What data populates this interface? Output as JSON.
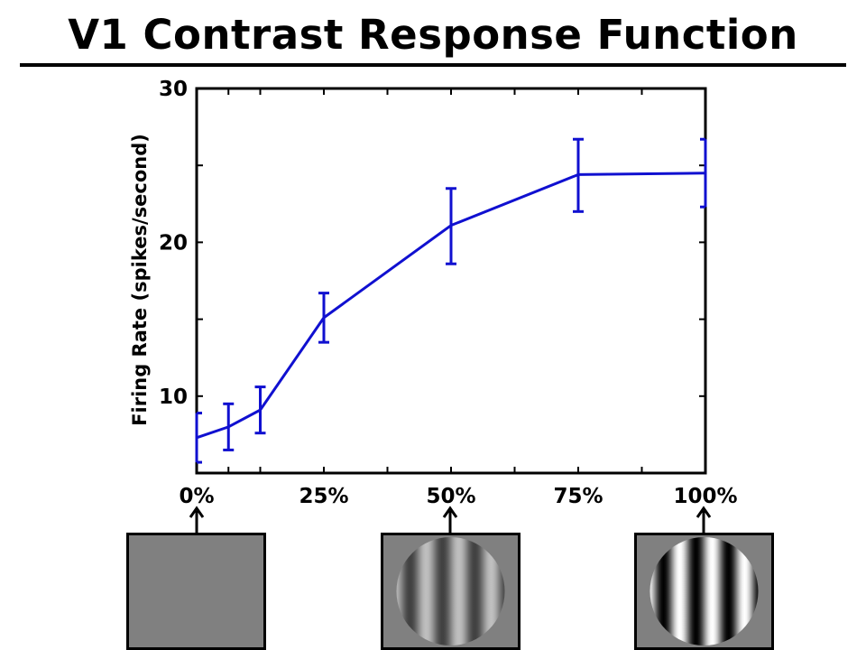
{
  "chart_data": {
    "type": "line",
    "title": "V1 Contrast Response Function",
    "xlabel": "",
    "ylabel": "Firing Rate (spikes/second)",
    "xlim": [
      0,
      100
    ],
    "ylim": [
      5,
      30
    ],
    "x_ticks": [
      0,
      25,
      50,
      75,
      100
    ],
    "x_tick_labels": [
      "0%",
      "25%",
      "50%",
      "75%",
      "100%"
    ],
    "x_minor_ticks": [
      6.25,
      12.5,
      37.5,
      62.5,
      87.5
    ],
    "y_ticks": [
      10,
      20,
      30
    ],
    "y_tick_labels": [
      "10",
      "20",
      "30"
    ],
    "y_minor_ticks": [
      15,
      25
    ],
    "grid": false,
    "line_color": "#1010d0",
    "series": [
      {
        "x": [
          0,
          6.25,
          12.5,
          25,
          50,
          75,
          100
        ],
        "y": [
          7.3,
          8.0,
          9.1,
          15.1,
          21.1,
          24.4,
          24.5
        ],
        "err_low": [
          5.7,
          6.5,
          7.6,
          13.5,
          18.6,
          22.0,
          22.3
        ],
        "err_high": [
          8.9,
          9.5,
          10.6,
          16.7,
          23.5,
          26.7,
          26.7
        ]
      }
    ]
  },
  "stimuli": [
    {
      "contrast": 0
    },
    {
      "contrast": 0.5
    },
    {
      "contrast": 1.0
    }
  ]
}
